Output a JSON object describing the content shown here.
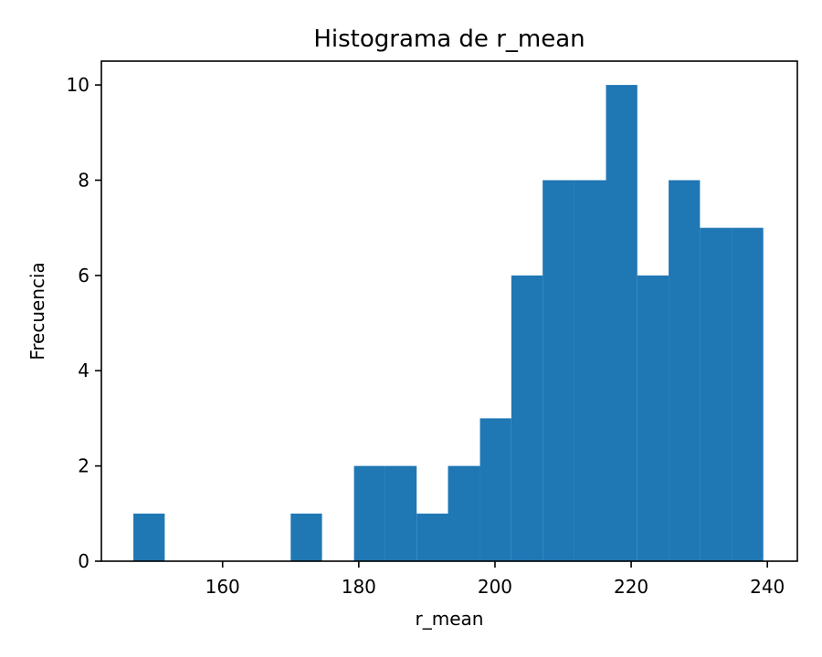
{
  "chart_data": {
    "type": "histogram",
    "title": "Histograma de r_mean",
    "xlabel": "r_mean",
    "ylabel": "Frecuencia",
    "xlim": [
      142.2,
      244.4
    ],
    "ylim": [
      0,
      10.5
    ],
    "xticks": [
      160,
      180,
      200,
      220,
      240
    ],
    "yticks": [
      0,
      2,
      4,
      6,
      8,
      10
    ],
    "color": "#1f77b4",
    "grid": false,
    "bins": [
      {
        "start": 146.9,
        "end": 151.5,
        "count": 1
      },
      {
        "start": 151.5,
        "end": 156.1,
        "count": 0
      },
      {
        "start": 156.1,
        "end": 160.8,
        "count": 0
      },
      {
        "start": 160.8,
        "end": 165.4,
        "count": 0
      },
      {
        "start": 165.4,
        "end": 170.0,
        "count": 0
      },
      {
        "start": 170.0,
        "end": 174.6,
        "count": 1
      },
      {
        "start": 174.6,
        "end": 179.3,
        "count": 0
      },
      {
        "start": 179.3,
        "end": 183.9,
        "count": 2
      },
      {
        "start": 183.9,
        "end": 188.5,
        "count": 2
      },
      {
        "start": 188.5,
        "end": 193.1,
        "count": 1
      },
      {
        "start": 193.1,
        "end": 197.8,
        "count": 2
      },
      {
        "start": 197.8,
        "end": 202.4,
        "count": 3
      },
      {
        "start": 202.4,
        "end": 207.0,
        "count": 6
      },
      {
        "start": 207.0,
        "end": 211.6,
        "count": 8
      },
      {
        "start": 211.6,
        "end": 216.3,
        "count": 8
      },
      {
        "start": 216.3,
        "end": 220.9,
        "count": 10
      },
      {
        "start": 220.9,
        "end": 225.5,
        "count": 6
      },
      {
        "start": 225.5,
        "end": 230.1,
        "count": 8
      },
      {
        "start": 230.1,
        "end": 234.8,
        "count": 7
      },
      {
        "start": 234.8,
        "end": 239.4,
        "count": 7
      }
    ]
  }
}
